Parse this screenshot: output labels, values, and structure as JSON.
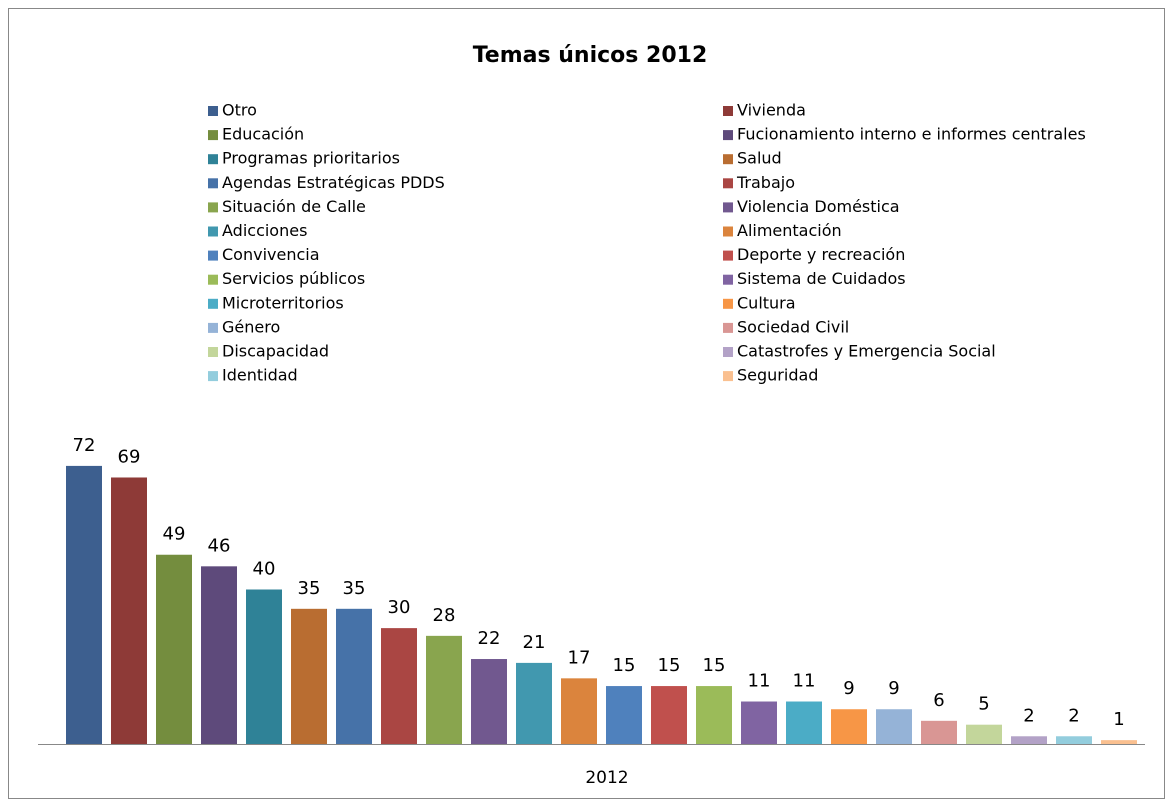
{
  "chart_data": {
    "type": "bar",
    "title": "Temas únicos  2012",
    "categories": [
      "2012"
    ],
    "ylim": [
      0,
      80
    ],
    "series": [
      {
        "name": "Otro",
        "color": "#3d5f8f",
        "values": [
          72
        ]
      },
      {
        "name": "Vivienda",
        "color": "#8e3a37",
        "values": [
          69
        ]
      },
      {
        "name": "Educación",
        "color": "#748d3e",
        "values": [
          49
        ]
      },
      {
        "name": "Fucionamiento interno e informes centrales",
        "color": "#5e4a7b",
        "values": [
          46
        ]
      },
      {
        "name": "Programas prioritarios",
        "color": "#2f8297",
        "values": [
          40
        ]
      },
      {
        "name": "Salud",
        "color": "#b96d31",
        "values": [
          35
        ]
      },
      {
        "name": "Agendas Estratégicas PDDS",
        "color": "#4672a8",
        "values": [
          35
        ]
      },
      {
        "name": "Trabajo",
        "color": "#aa4643",
        "values": [
          30
        ]
      },
      {
        "name": "Situación de Calle",
        "color": "#89a54e",
        "values": [
          28
        ]
      },
      {
        "name": "Violencia Doméstica",
        "color": "#71588f",
        "values": [
          22
        ]
      },
      {
        "name": "Adicciones",
        "color": "#4198af",
        "values": [
          21
        ]
      },
      {
        "name": "Alimentación",
        "color": "#db843d",
        "values": [
          17
        ]
      },
      {
        "name": "Convivencia",
        "color": "#4f81bd",
        "values": [
          15
        ]
      },
      {
        "name": "Deporte y recreación",
        "color": "#c0504d",
        "values": [
          15
        ]
      },
      {
        "name": "Servicios públicos",
        "color": "#9bbb59",
        "values": [
          15
        ]
      },
      {
        "name": "Sistema de Cuidados",
        "color": "#8064a2",
        "values": [
          11
        ]
      },
      {
        "name": "Microterritorios",
        "color": "#4bacc6",
        "values": [
          11
        ]
      },
      {
        "name": "Cultura",
        "color": "#f79646",
        "values": [
          9
        ]
      },
      {
        "name": "Género",
        "color": "#95b3d7",
        "values": [
          9
        ]
      },
      {
        "name": "Sociedad Civil",
        "color": "#d99694",
        "values": [
          6
        ]
      },
      {
        "name": "Discapacidad",
        "color": "#c3d69b",
        "values": [
          5
        ]
      },
      {
        "name": "Catastrofes y Emergencia Social",
        "color": "#b3a2c7",
        "values": [
          2
        ]
      },
      {
        "name": "Identidad",
        "color": "#93cddd",
        "values": [
          2
        ]
      },
      {
        "name": "Seguridad",
        "color": "#fac090",
        "values": [
          1
        ]
      }
    ]
  }
}
